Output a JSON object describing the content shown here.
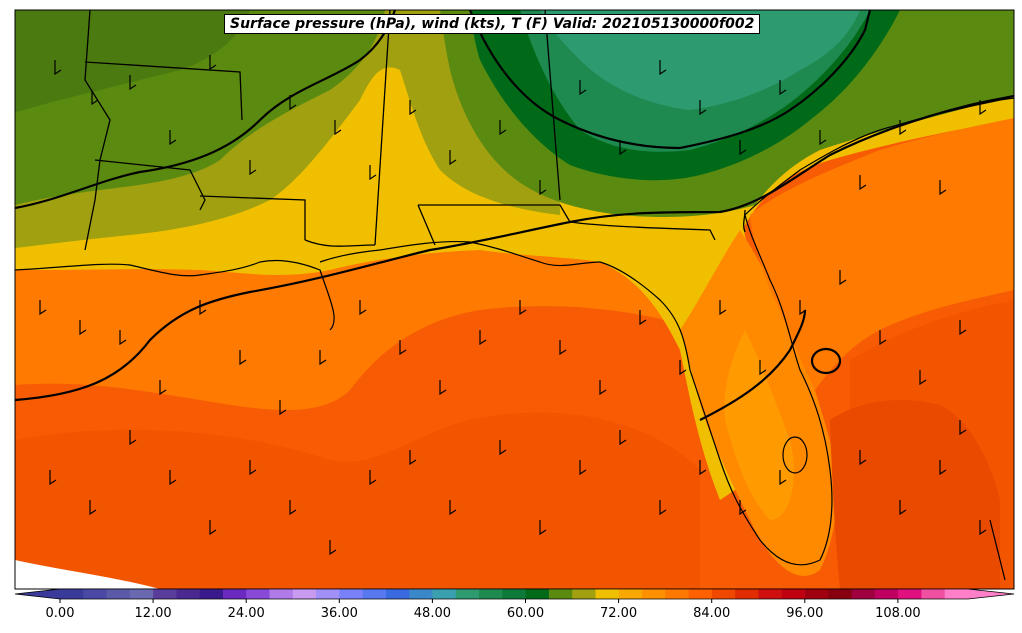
{
  "title": "Surface pressure (hPa), wind (kts), T (F) Valid: 202105130000f002",
  "colorbar": {
    "tick_labels": [
      "0.00",
      "12.00",
      "24.00",
      "36.00",
      "48.00",
      "60.00",
      "72.00",
      "84.00",
      "96.00",
      "108.00"
    ],
    "colors": [
      "#3a3a9a",
      "#4a4aa6",
      "#5a5aa8",
      "#6a68b0",
      "#5a3c9a",
      "#4a2a90",
      "#3a1a8c",
      "#6a2ac0",
      "#8a4ad8",
      "#b07ae8",
      "#c89af0",
      "#a090f8",
      "#7a80f8",
      "#5878f0",
      "#3a6ae0",
      "#3a88c8",
      "#3aa0b0",
      "#2e9a70",
      "#1e8a50",
      "#0e7a3a",
      "#006a18",
      "#5a8a10",
      "#a0a010",
      "#f0c000",
      "#f8a800",
      "#ff9000",
      "#ff7800",
      "#ff6000",
      "#f04800",
      "#e02c00",
      "#d01010",
      "#c00010",
      "#a00010",
      "#880010",
      "#a00040",
      "#c00060",
      "#e01080",
      "#f050a0",
      "#ff80c8"
    ]
  },
  "map": {
    "ocean_color": "#f75c05",
    "land_color": "#f0c000"
  }
}
